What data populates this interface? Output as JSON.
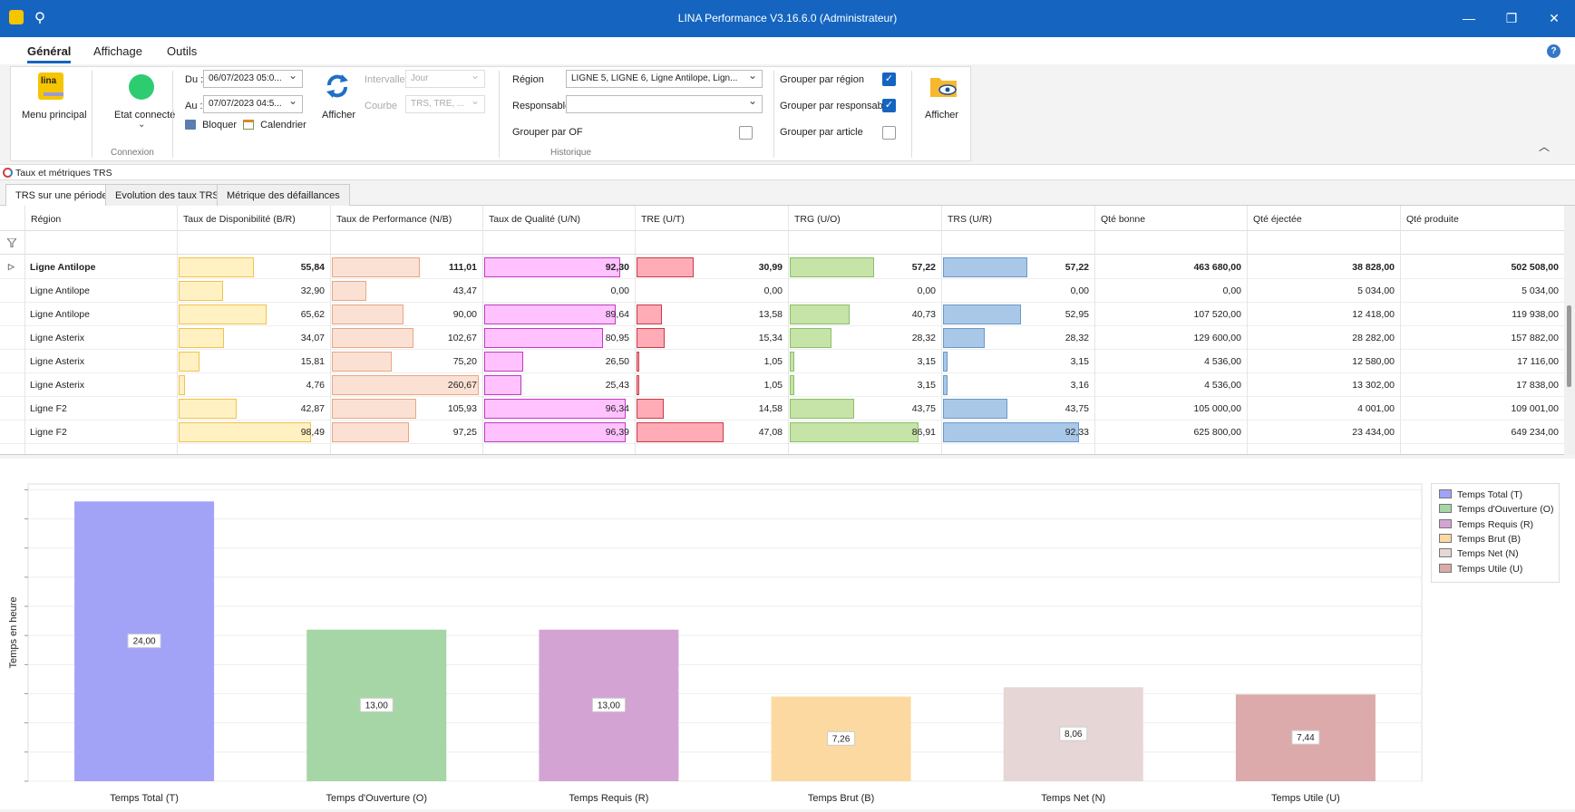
{
  "window": {
    "title": "LINA Performance  V3.16.6.0  (Administrateur)",
    "controls": [
      "—",
      "❐",
      "✕"
    ]
  },
  "menu": {
    "tabs": [
      "Général",
      "Affichage",
      "Outils"
    ],
    "help": "?"
  },
  "ribbon": {
    "menu_principal": {
      "label": "Menu principal",
      "logo": "lina"
    },
    "connexion": {
      "label": "Etat connecté",
      "status_color": "#2ecc71",
      "group": "Connexion"
    },
    "du_label": "Du :",
    "du_value": "06/07/2023 05:0...",
    "au_label": "Au :",
    "au_value": "07/07/2023 04:5...",
    "bloquer": "Bloquer",
    "calendrier": "Calendrier",
    "afficher": "Afficher",
    "intervalle_label": "Intervalle",
    "intervalle_value": "Jour",
    "courbe_label": "Courbe",
    "courbe_value": "TRS, TRE, ...",
    "region_label": "Région",
    "region_value": "LIGNE 5, LIGNE 6, Ligne Antilope, Lign...",
    "responsable_label": "Responsable",
    "responsable_value": "",
    "grouper_of": "Grouper par OF",
    "historique": "Historique",
    "grouper_region": "Grouper par région",
    "grouper_responsable": "Grouper par responsable",
    "grouper_article": "Grouper par article",
    "afficher2": "Afficher"
  },
  "section_title": "Taux et métriques TRS",
  "page_tabs": [
    "TRS sur une période",
    "Evolution des taux TRS",
    "Métrique des défaillances"
  ],
  "grid": {
    "columns": [
      "Région",
      "Taux de Disponibilité (B/R)",
      "Taux de Performance (N/B)",
      "Taux de Qualité (U/N)",
      "TRE (U/T)",
      "TRG (U/O)",
      "TRS (U/R)",
      "Qté bonne",
      "Qté éjectée",
      "Qté produite"
    ],
    "rows": [
      {
        "region": "Ligne Antilope",
        "dispo": "55,84",
        "perf": "111,01",
        "qual": "92,30",
        "tre": "30,99",
        "trg": "57,22",
        "trs": "57,22",
        "bonne": "463 680,00",
        "ejectee": "38 828,00",
        "produite": "502 508,00",
        "bold": true
      },
      {
        "region": "Ligne Antilope",
        "dispo": "32,90",
        "perf": "43,47",
        "qual": "0,00",
        "tre": "0,00",
        "trg": "0,00",
        "trs": "0,00",
        "bonne": "0,00",
        "ejectee": "5 034,00",
        "produite": "5 034,00"
      },
      {
        "region": "Ligne Antilope",
        "dispo": "65,62",
        "perf": "90,00",
        "qual": "89,64",
        "tre": "13,58",
        "trg": "40,73",
        "trs": "52,95",
        "bonne": "107 520,00",
        "ejectee": "12 418,00",
        "produite": "119 938,00"
      },
      {
        "region": "Ligne Asterix",
        "dispo": "34,07",
        "perf": "102,67",
        "qual": "80,95",
        "tre": "15,34",
        "trg": "28,32",
        "trs": "28,32",
        "bonne": "129 600,00",
        "ejectee": "28 282,00",
        "produite": "157 882,00"
      },
      {
        "region": "Ligne Asterix",
        "dispo": "15,81",
        "perf": "75,20",
        "qual": "26,50",
        "tre": "1,05",
        "trg": "3,15",
        "trs": "3,15",
        "bonne": "4 536,00",
        "ejectee": "12 580,00",
        "produite": "17 116,00"
      },
      {
        "region": "Ligne Asterix",
        "dispo": "4,76",
        "perf": "260,67",
        "qual": "25,43",
        "tre": "1,05",
        "trg": "3,15",
        "trs": "3,16",
        "bonne": "4 536,00",
        "ejectee": "13 302,00",
        "produite": "17 838,00"
      },
      {
        "region": "Ligne F2",
        "dispo": "42,87",
        "perf": "105,93",
        "qual": "96,34",
        "tre": "14,58",
        "trg": "43,75",
        "trs": "43,75",
        "bonne": "105 000,00",
        "ejectee": "4 001,00",
        "produite": "109 001,00"
      },
      {
        "region": "Ligne F2",
        "dispo": "98,49",
        "perf": "97,25",
        "qual": "96,39",
        "tre": "47,08",
        "trg": "86,91",
        "trs": "92,33",
        "bonne": "625 800,00",
        "ejectee": "23 434,00",
        "produite": "649 234,00"
      }
    ],
    "bar_colors": {
      "dispo": [
        "#fff1c2",
        "#f2c24b"
      ],
      "perf": [
        "#fbe1d4",
        "#e9a584"
      ],
      "qual": [
        "#ffc2ff",
        "#c03ac0"
      ],
      "tre": [
        "#ffacb6",
        "#c83a48"
      ],
      "trg": [
        "#c6e3a8",
        "#8cbf66"
      ],
      "trs": [
        "#a9c8e8",
        "#6b97c9"
      ]
    }
  },
  "chart_data": {
    "type": "bar",
    "title": "",
    "xlabel": "",
    "ylabel": "Temps en heure",
    "ylim": [
      0,
      25.5
    ],
    "categories": [
      "Temps Total (T)",
      "Temps d'Ouverture (O)",
      "Temps Requis (R)",
      "Temps Brut (B)",
      "Temps Net (N)",
      "Temps Utile (U)"
    ],
    "values": [
      24.0,
      13.0,
      13.0,
      7.26,
      8.06,
      7.44
    ],
    "labels": [
      "24,00",
      "13,00",
      "13,00",
      "7,26",
      "8,06",
      "7,44"
    ],
    "colors": [
      "#a2a2f7",
      "#a6d5a6",
      "#d3a4d3",
      "#fcd9a1",
      "#e6d6d6",
      "#dcaaaa"
    ],
    "legend": [
      "Temps Total (T)",
      "Temps d'Ouverture (O)",
      "Temps Requis (R)",
      "Temps Brut (B)",
      "Temps Net (N)",
      "Temps Utile (U)"
    ],
    "legend_position": "right",
    "grid": true
  }
}
